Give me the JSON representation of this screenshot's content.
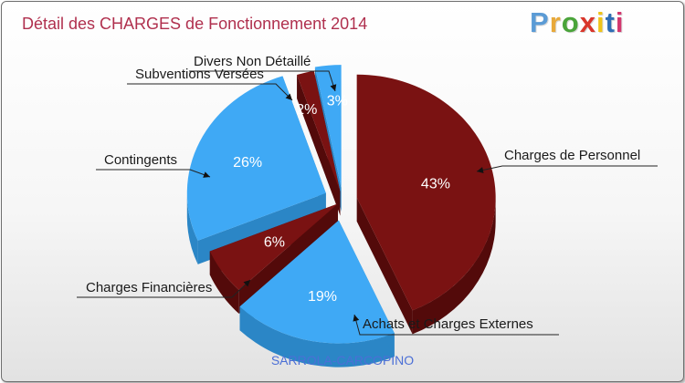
{
  "title": "Détail des CHARGES de Fonctionnement 2014",
  "logo": {
    "text": "Proxiti",
    "colors": [
      "#5b9bd5",
      "#e8a93a",
      "#4aa43a",
      "#d9362b",
      "#f0c419",
      "#2f6db5",
      "#d3376f"
    ]
  },
  "city": "SARROLA-CARCOPINO",
  "colors": {
    "blue_top": "#3fa9f5",
    "blue_side": "#2b86c6",
    "red_top": "#7a1212",
    "red_side": "#530a0a",
    "title": "#b0304e",
    "city": "#4b6fd6"
  },
  "chart_data": {
    "type": "pie",
    "title": "Détail des CHARGES de Fonctionnement 2014",
    "unit": "%",
    "slices": [
      {
        "label": "Charges de Personnel",
        "value": 43,
        "pct_label": "43%",
        "color": "red"
      },
      {
        "label": "Achats et Charges Externes",
        "value": 19,
        "pct_label": "19%",
        "color": "blue"
      },
      {
        "label": "Charges Financières",
        "value": 6,
        "pct_label": "6%",
        "color": "red"
      },
      {
        "label": "Contingents",
        "value": 26,
        "pct_label": "26%",
        "color": "blue"
      },
      {
        "label": "Subventions Versées",
        "value": 2,
        "pct_label": "2%",
        "color": "red"
      },
      {
        "label": "Divers Non Détaillé",
        "value": 3,
        "pct_label": "3%",
        "color": "blue"
      }
    ]
  }
}
